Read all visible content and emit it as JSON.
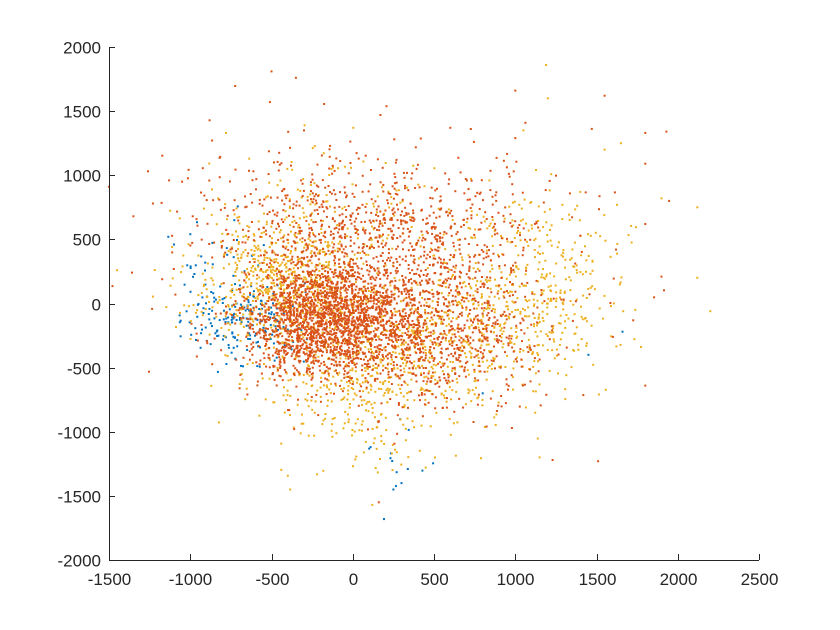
{
  "chart_data": {
    "type": "scatter",
    "title": "",
    "xlabel": "",
    "ylabel": "",
    "xlim": [
      -1500,
      2500
    ],
    "ylim": [
      -2000,
      2000
    ],
    "xticks": [
      -1500,
      -1000,
      -500,
      0,
      500,
      1000,
      1500,
      2000,
      2500
    ],
    "yticks": [
      -2000,
      -1500,
      -1000,
      -500,
      0,
      500,
      1000,
      1500,
      2000
    ],
    "xtick_labels": [
      "-1500",
      "-1000",
      "-500",
      "0",
      "500",
      "1000",
      "1500",
      "2000",
      "2500"
    ],
    "ytick_labels": [
      "-2000",
      "-1500",
      "-1000",
      "-500",
      "0",
      "500",
      "1000",
      "1500",
      "2000"
    ],
    "grid": false,
    "legend": "none",
    "series": [
      {
        "color": "#0072BD",
        "clusters": [
          {
            "cx": -650,
            "cy": -150,
            "sx": 160,
            "sy": 150,
            "n": 180
          },
          {
            "cx": -900,
            "cy": 150,
            "sx": 150,
            "sy": 200,
            "n": 40
          },
          {
            "cx": 200,
            "cy": -1250,
            "sx": 150,
            "sy": 150,
            "n": 12
          }
        ],
        "points": [
          {
            "x": -1100,
            "y": 460
          },
          {
            "x": -1000,
            "y": 540
          },
          {
            "x": 1660,
            "y": -220
          },
          {
            "x": 1450,
            "y": -400
          },
          {
            "x": 300,
            "y": -1400
          },
          {
            "x": 250,
            "y": -1450
          },
          {
            "x": 110,
            "y": -1120
          },
          {
            "x": 800,
            "y": -700
          }
        ]
      },
      {
        "color": "#EDB120",
        "clusters": [
          {
            "cx": -450,
            "cy": 150,
            "sx": 250,
            "sy": 260,
            "n": 650
          },
          {
            "cx": 300,
            "cy": -350,
            "sx": 350,
            "sy": 280,
            "n": 550
          },
          {
            "cx": 1050,
            "cy": 50,
            "sx": 300,
            "sy": 380,
            "n": 520
          },
          {
            "cx": 0,
            "cy": -800,
            "sx": 300,
            "sy": 250,
            "n": 180
          },
          {
            "cx": -150,
            "cy": 600,
            "sx": 350,
            "sy": 300,
            "n": 160
          }
        ],
        "points": [
          {
            "x": 1190,
            "y": 1860
          },
          {
            "x": 1200,
            "y": 1600
          },
          {
            "x": 1050,
            "y": 1350
          },
          {
            "x": 1550,
            "y": 1200
          },
          {
            "x": 1400,
            "y": 870
          },
          {
            "x": 1900,
            "y": 820
          },
          {
            "x": 2120,
            "y": 750
          },
          {
            "x": 2200,
            "y": -60
          },
          {
            "x": 2120,
            "y": 200
          },
          {
            "x": 1650,
            "y": 1250
          },
          {
            "x": -780,
            "y": 1330
          },
          {
            "x": -1450,
            "y": 260
          },
          {
            "x": 120,
            "y": -1570
          },
          {
            "x": 1150,
            "y": -1200
          }
        ]
      },
      {
        "color": "#D95319",
        "clusters": [
          {
            "cx": -180,
            "cy": -150,
            "sx": 230,
            "sy": 200,
            "n": 1500
          },
          {
            "cx": 100,
            "cy": 200,
            "sx": 400,
            "sy": 380,
            "n": 1100
          },
          {
            "cx": 500,
            "cy": -250,
            "sx": 350,
            "sy": 280,
            "n": 650
          },
          {
            "cx": 600,
            "cy": 600,
            "sx": 450,
            "sy": 300,
            "n": 220
          },
          {
            "cx": -400,
            "cy": 700,
            "sx": 300,
            "sy": 300,
            "n": 180
          }
        ],
        "points": [
          {
            "x": -500,
            "y": 1810
          },
          {
            "x": -350,
            "y": 1760
          },
          {
            "x": -510,
            "y": 1570
          },
          {
            "x": 1000,
            "y": 1660
          },
          {
            "x": 1550,
            "y": 1620
          },
          {
            "x": -300,
            "y": 1350
          },
          {
            "x": 170,
            "y": 1470
          },
          {
            "x": 1800,
            "y": 1330
          },
          {
            "x": 1930,
            "y": 1340
          },
          {
            "x": 1800,
            "y": 1090
          },
          {
            "x": -1500,
            "y": 910
          },
          {
            "x": -1130,
            "y": 960
          },
          {
            "x": -1050,
            "y": 950
          },
          {
            "x": -1350,
            "y": 680
          },
          {
            "x": -1230,
            "y": 780
          },
          {
            "x": 1510,
            "y": -1230
          },
          {
            "x": 1800,
            "y": -640
          },
          {
            "x": 160,
            "y": -1550
          },
          {
            "x": 1230,
            "y": -1220
          },
          {
            "x": 1900,
            "y": 210
          },
          {
            "x": 1800,
            "y": 620
          },
          {
            "x": 1620,
            "y": 420
          },
          {
            "x": 1000,
            "y": 1290
          },
          {
            "x": 600,
            "y": 1370
          }
        ]
      }
    ]
  }
}
